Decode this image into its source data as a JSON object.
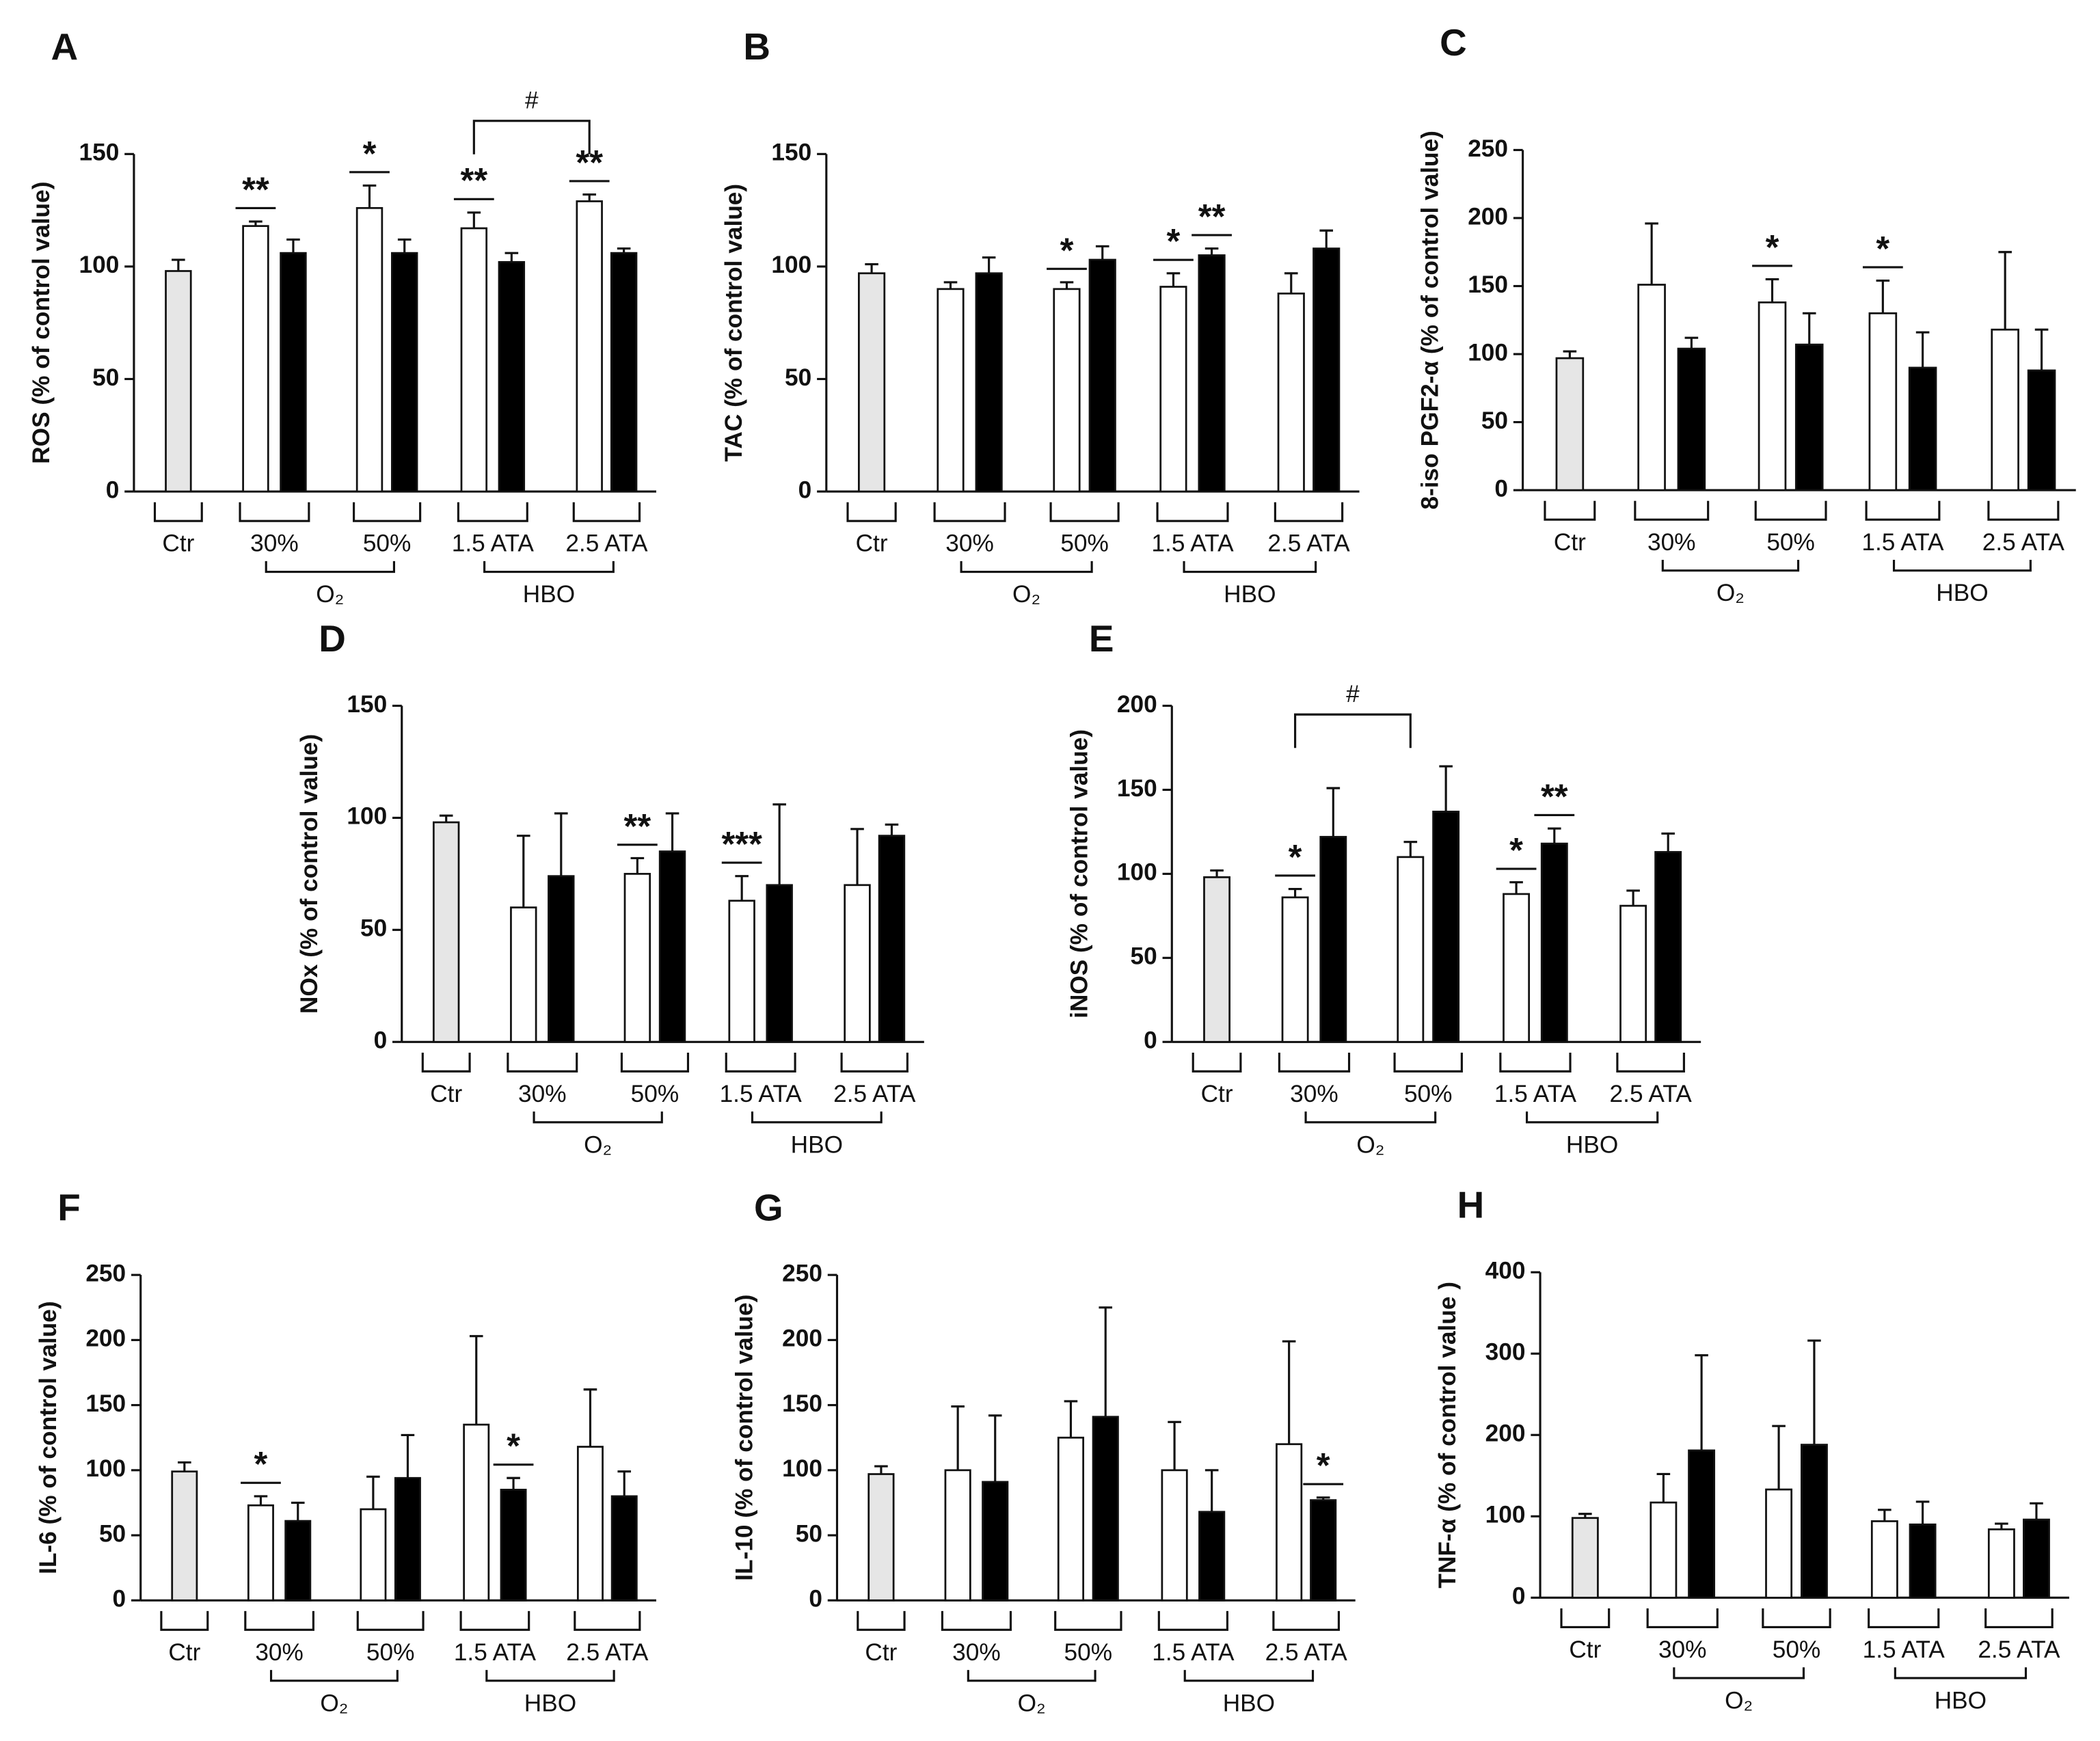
{
  "chart_data": [
    {
      "type": "bar",
      "title": "A",
      "ylabel": "ROS (% of control value)",
      "groups": [
        "Ctr",
        "30%",
        "50%",
        "1.5 ATA",
        "2.5 ATA"
      ],
      "supergroups": [
        "O₂",
        "HBO"
      ],
      "values": [
        98,
        118,
        106,
        126,
        106,
        117,
        102,
        129,
        106
      ],
      "errors": [
        5,
        2,
        6,
        10,
        6,
        7,
        4,
        3,
        2
      ],
      "colors": [
        "#e6e6e6",
        "#ffffff",
        "#000000",
        "#ffffff",
        "#000000",
        "#ffffff",
        "#000000",
        "#ffffff",
        "#000000"
      ],
      "significance": [
        null,
        "**",
        null,
        "*",
        null,
        "**",
        null,
        "**",
        null
      ],
      "bracket": {
        "label": "#",
        "bars": [
          5,
          7
        ]
      },
      "ylim": [
        0,
        150
      ],
      "yticks": [
        0,
        50,
        100,
        150
      ]
    },
    {
      "type": "bar",
      "title": "B",
      "ylabel": "TAC (% of control value)",
      "groups": [
        "Ctr",
        "30%",
        "50%",
        "1.5 ATA",
        "2.5 ATA"
      ],
      "supergroups": [
        "O₂",
        "HBO"
      ],
      "values": [
        97,
        90,
        97,
        90,
        103,
        91,
        105,
        88,
        108
      ],
      "errors": [
        4,
        3,
        7,
        3,
        6,
        6,
        3,
        9,
        8
      ],
      "colors": [
        "#e6e6e6",
        "#ffffff",
        "#000000",
        "#ffffff",
        "#000000",
        "#ffffff",
        "#000000",
        "#ffffff",
        "#000000"
      ],
      "significance": [
        null,
        null,
        null,
        "*",
        null,
        "*",
        "**",
        null,
        null
      ],
      "ylim": [
        0,
        150
      ],
      "yticks": [
        0,
        50,
        100,
        150
      ]
    },
    {
      "type": "bar",
      "title": "C",
      "ylabel": "8-iso PGF2-α (% of control value)",
      "groups": [
        "Ctr",
        "30%",
        "50%",
        "1.5 ATA",
        "2.5 ATA"
      ],
      "supergroups": [
        "O₂",
        "HBO"
      ],
      "values": [
        97,
        151,
        104,
        138,
        107,
        130,
        90,
        118,
        88
      ],
      "errors": [
        5,
        45,
        8,
        17,
        23,
        24,
        26,
        57,
        30
      ],
      "colors": [
        "#e6e6e6",
        "#ffffff",
        "#000000",
        "#ffffff",
        "#000000",
        "#ffffff",
        "#000000",
        "#ffffff",
        "#000000"
      ],
      "significance": [
        null,
        null,
        null,
        "*",
        null,
        "*",
        null,
        null,
        null
      ],
      "ylim": [
        0,
        250
      ],
      "yticks": [
        0,
        50,
        100,
        150,
        200,
        250
      ]
    },
    {
      "type": "bar",
      "title": "D",
      "ylabel": "NOx (% of control value)",
      "groups": [
        "Ctr",
        "30%",
        "50%",
        "1.5 ATA",
        "2.5 ATA"
      ],
      "supergroups": [
        "O₂",
        "HBO"
      ],
      "values": [
        98,
        60,
        74,
        75,
        85,
        63,
        70,
        70,
        92
      ],
      "errors": [
        3,
        32,
        28,
        7,
        17,
        11,
        36,
        25,
        5
      ],
      "colors": [
        "#e6e6e6",
        "#ffffff",
        "#000000",
        "#ffffff",
        "#000000",
        "#ffffff",
        "#000000",
        "#ffffff",
        "#000000"
      ],
      "significance": [
        null,
        null,
        null,
        "**",
        null,
        "***",
        null,
        null,
        null
      ],
      "ylim": [
        0,
        150
      ],
      "yticks": [
        0,
        50,
        100,
        150
      ]
    },
    {
      "type": "bar",
      "title": "E",
      "ylabel": "iNOS (% of control value)",
      "groups": [
        "Ctr",
        "30%",
        "50%",
        "1.5 ATA",
        "2.5 ATA"
      ],
      "supergroups": [
        "O₂",
        "HBO"
      ],
      "values": [
        98,
        86,
        122,
        110,
        137,
        88,
        118,
        81,
        113
      ],
      "errors": [
        4,
        5,
        29,
        9,
        27,
        7,
        9,
        9,
        11
      ],
      "colors": [
        "#e6e6e6",
        "#ffffff",
        "#000000",
        "#ffffff",
        "#000000",
        "#ffffff",
        "#000000",
        "#ffffff",
        "#000000"
      ],
      "significance": [
        null,
        "*",
        null,
        null,
        null,
        "*",
        "**",
        null,
        null
      ],
      "bracket": {
        "label": "#",
        "bars": [
          1,
          3
        ]
      },
      "ylim": [
        0,
        200
      ],
      "yticks": [
        0,
        50,
        100,
        150,
        200
      ]
    },
    {
      "type": "bar",
      "title": "F",
      "ylabel": "IL-6 (% of control value)",
      "groups": [
        "Ctr",
        "30%",
        "50%",
        "1.5 ATA",
        "2.5 ATA"
      ],
      "supergroups": [
        "O₂",
        "HBO"
      ],
      "values": [
        99,
        73,
        61,
        70,
        94,
        135,
        85,
        118,
        80
      ],
      "errors": [
        7,
        7,
        14,
        25,
        33,
        68,
        9,
        44,
        19
      ],
      "colors": [
        "#e6e6e6",
        "#ffffff",
        "#000000",
        "#ffffff",
        "#000000",
        "#ffffff",
        "#000000",
        "#ffffff",
        "#000000"
      ],
      "significance": [
        null,
        "*",
        null,
        null,
        null,
        null,
        "*",
        null,
        null
      ],
      "ylim": [
        0,
        250
      ],
      "yticks": [
        0,
        50,
        100,
        150,
        200,
        250
      ]
    },
    {
      "type": "bar",
      "title": "G",
      "ylabel": "IL-10 (% of control value)",
      "groups": [
        "Ctr",
        "30%",
        "50%",
        "1.5 ATA",
        "2.5 ATA"
      ],
      "supergroups": [
        "O₂",
        "HBO"
      ],
      "values": [
        97,
        100,
        91,
        125,
        141,
        100,
        68,
        120,
        77
      ],
      "errors": [
        6,
        49,
        51,
        28,
        84,
        37,
        32,
        79,
        2
      ],
      "colors": [
        "#e6e6e6",
        "#ffffff",
        "#000000",
        "#ffffff",
        "#000000",
        "#ffffff",
        "#000000",
        "#ffffff",
        "#000000"
      ],
      "significance": [
        null,
        null,
        null,
        null,
        null,
        null,
        null,
        null,
        "*"
      ],
      "ylim": [
        0,
        250
      ],
      "yticks": [
        0,
        50,
        100,
        150,
        200,
        250
      ]
    },
    {
      "type": "bar",
      "title": "H",
      "ylabel": "TNF-α (% of control value )",
      "groups": [
        "Ctr",
        "30%",
        "50%",
        "1.5 ATA",
        "2.5 ATA"
      ],
      "supergroups": [
        "O₂",
        "HBO"
      ],
      "values": [
        98,
        117,
        181,
        133,
        188,
        94,
        90,
        84,
        96
      ],
      "errors": [
        5,
        35,
        117,
        78,
        128,
        14,
        28,
        7,
        20
      ],
      "colors": [
        "#e6e6e6",
        "#ffffff",
        "#000000",
        "#ffffff",
        "#000000",
        "#ffffff",
        "#000000",
        "#ffffff",
        "#000000"
      ],
      "significance": [
        null,
        null,
        null,
        null,
        null,
        null,
        null,
        null,
        null
      ],
      "ylim": [
        0,
        400
      ],
      "yticks": [
        0,
        100,
        200,
        300,
        400
      ]
    }
  ]
}
